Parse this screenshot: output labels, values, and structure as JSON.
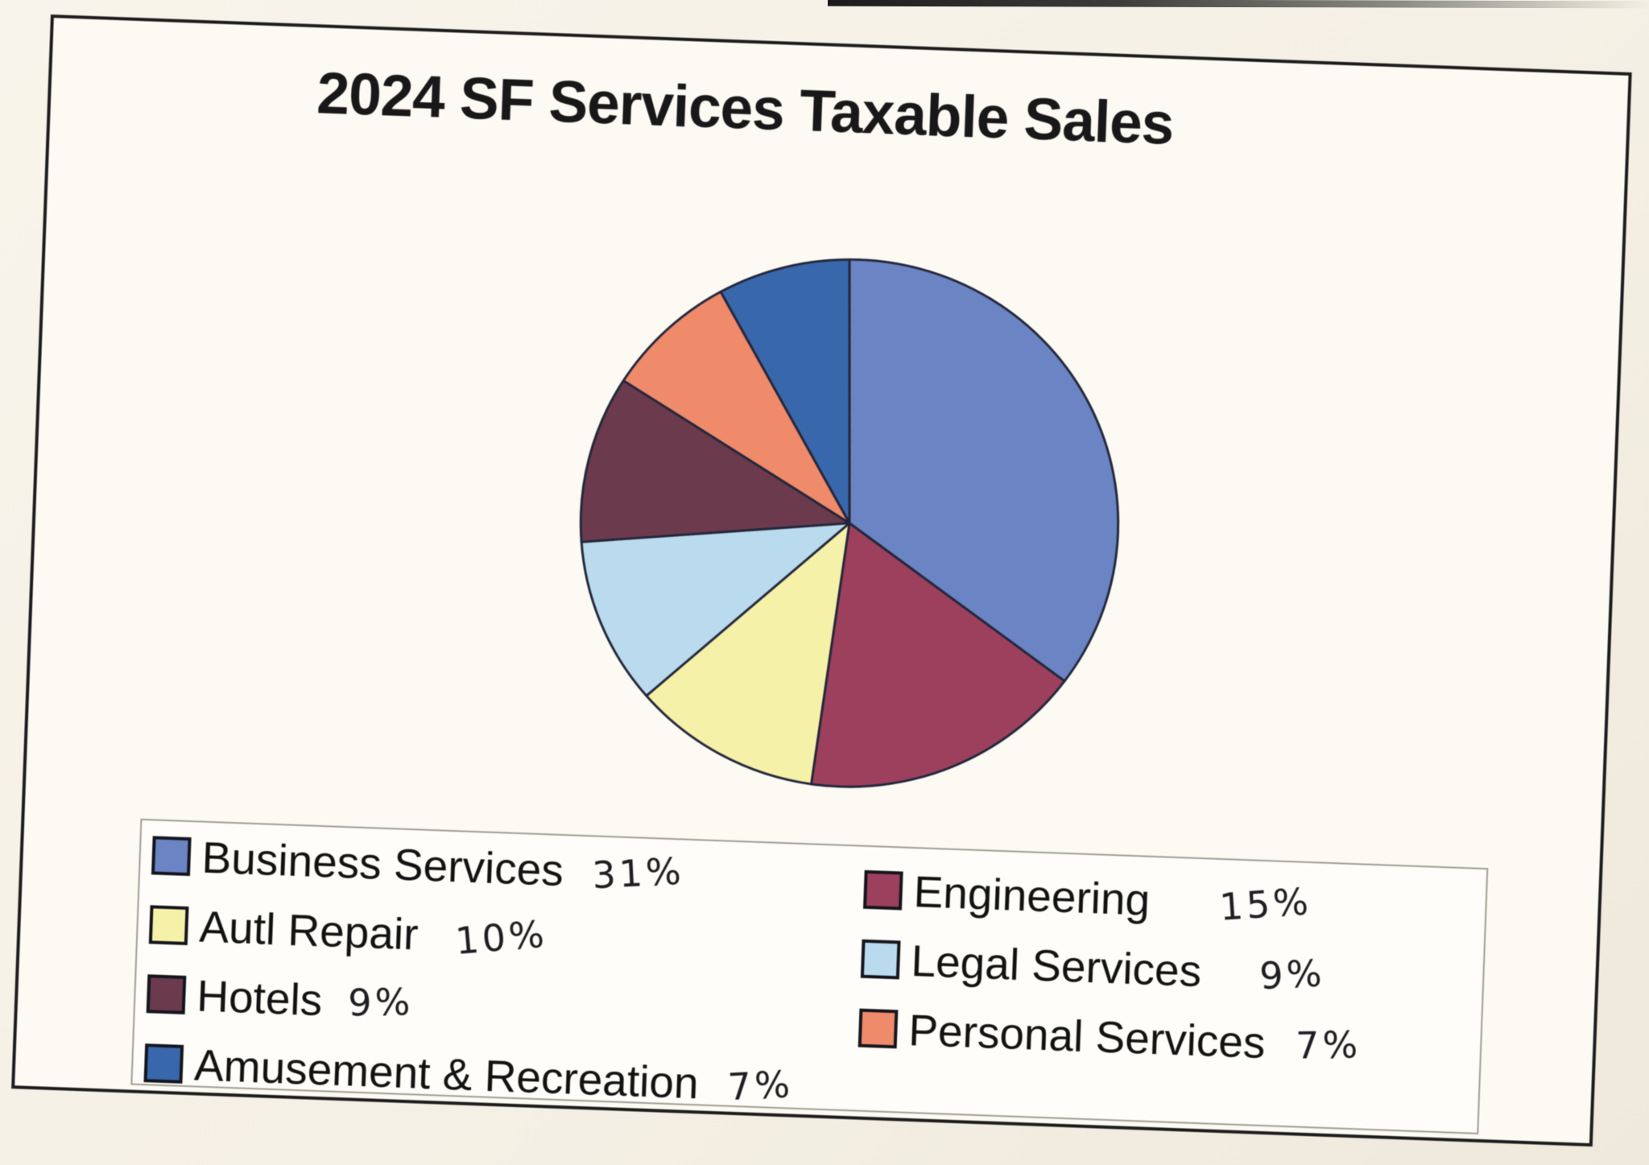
{
  "chart_data": {
    "type": "pie",
    "title": "2024 SF Services Taxable Sales",
    "legend_position": "bottom",
    "start_angle_deg": 0,
    "direction": "clockwise",
    "slices": [
      {
        "label": "Business Services",
        "pct_label": "31%",
        "value": 31,
        "color": "#6a84c4"
      },
      {
        "label": "Engineering",
        "pct_label": "15%",
        "value": 15,
        "color": "#9c405e"
      },
      {
        "label": "Autl Repair",
        "pct_label": "10%",
        "value": 10,
        "color": "#f6f1a8"
      },
      {
        "label": "Legal Services",
        "pct_label": "9%",
        "value": 9,
        "color": "#b9dbed"
      },
      {
        "label": "Hotels",
        "pct_label": "9%",
        "value": 9,
        "color": "#6b3a4d"
      },
      {
        "label": "Personal Services",
        "pct_label": "7%",
        "value": 7,
        "color": "#ef8a6b"
      },
      {
        "label": "Amusement & Recreation",
        "pct_label": "7%",
        "value": 7,
        "color": "#3867ac"
      }
    ],
    "legend_rows": [
      [
        0,
        1
      ],
      [
        2,
        3
      ],
      [
        4,
        5
      ],
      [
        6
      ]
    ],
    "outline_color": "#23263a"
  }
}
